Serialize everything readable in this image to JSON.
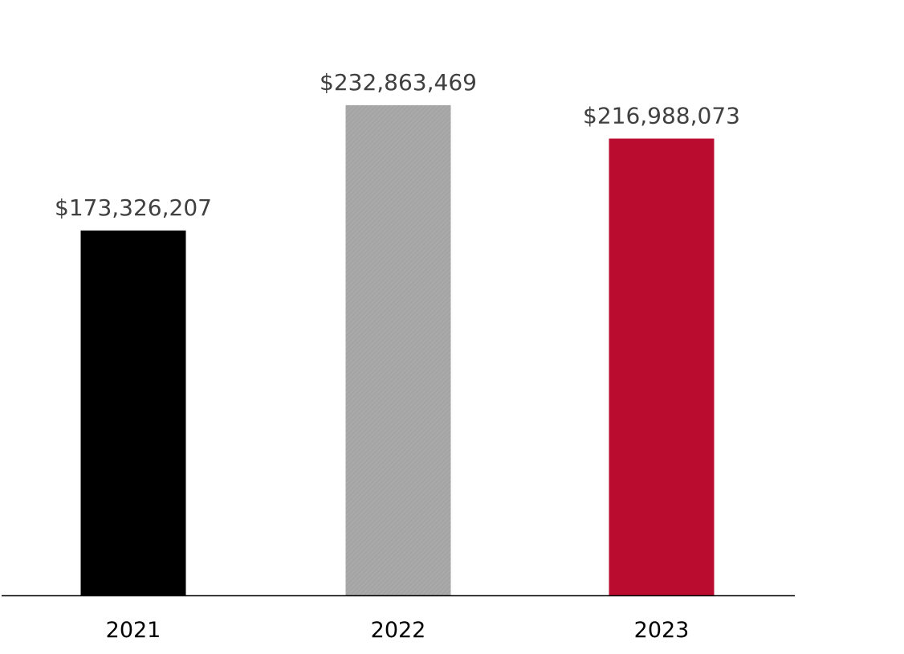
{
  "chart_data": {
    "type": "bar",
    "categories": [
      "2021",
      "2022",
      "2023"
    ],
    "values": [
      173326207,
      232863469,
      216988073
    ],
    "data_labels": [
      "$173,326,207",
      "$232,863,469",
      "$216,988,073"
    ],
    "bar_colors": [
      "#000000",
      "#a6a6a6",
      "#ba0c2f"
    ],
    "title": "",
    "xlabel": "",
    "ylabel": "",
    "ylim": [
      0,
      250000000
    ],
    "grid": false,
    "legend": "none"
  }
}
